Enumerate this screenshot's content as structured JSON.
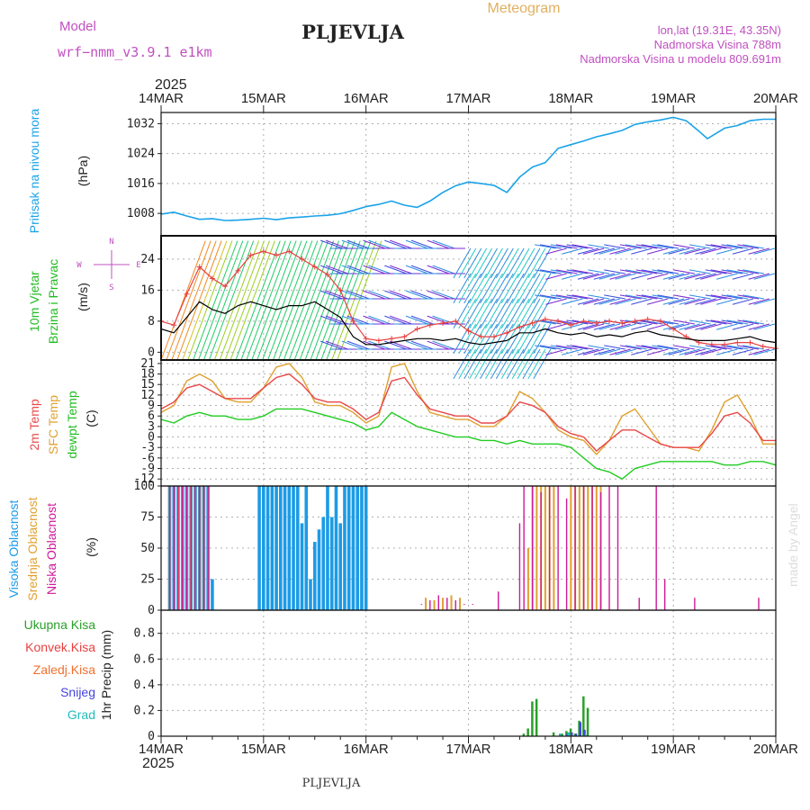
{
  "header": {
    "model_label": "Model",
    "model_value": "wrf−nmm_v3.9.1  e1km",
    "station": "PLJEVLJA",
    "product": "Meteogram",
    "coords": "lon,lat (19.31E, 43.35N)",
    "elevation": "Nadmorska Visina 788m",
    "model_elevation": "Nadmorska Visina u modelu 809.691m",
    "footer_station": "PLJEVLJA",
    "credit": "made by Angel"
  },
  "time_axis": {
    "year": "2025",
    "labels": [
      "14MAR",
      "15MAR",
      "16MAR",
      "17MAR",
      "18MAR",
      "19MAR",
      "20MAR"
    ],
    "start_hour": 0,
    "end_hour": 144
  },
  "colors": {
    "pressure": "#1aa3e8",
    "wind_speed": "#000000",
    "gust": "#e84040",
    "t2m": "#e84848",
    "sfc": "#e0a030",
    "dew": "#22cc22",
    "high_cloud": "#1c9be6",
    "mid_cloud": "#e0a030",
    "low_cloud": "#cc1a9a",
    "total_precip": "#2aa02a",
    "conv_precip": "#e84040",
    "snow_precip": "#4444dd",
    "grad_precip": "#22bbbb"
  },
  "panels": {
    "pressure": {
      "label": "Pritisak na nivou mora",
      "unit": "(hPa)"
    },
    "wind": {
      "label1": "10m Vjetar",
      "label2": "Brzina i Pravac",
      "unit": "(m/s)",
      "compass_n": "N",
      "compass_s": "S",
      "compass_w": "W",
      "compass_e": "E"
    },
    "temp": {
      "label1": "2m Temp",
      "label2": "SFC Temp",
      "label3": "dewpt Temp",
      "unit": "(C)"
    },
    "cloud": {
      "label1": "Visoka Oblacnost",
      "label2": "Srednja Oblacnost",
      "label3": "Niska Oblacnost",
      "unit": "(%)"
    },
    "precip": {
      "label": "1hr Precip (mm)",
      "legend": [
        "Ukupna Kisa",
        "Konvek.Kisa",
        "Zaledj.Kisa",
        "Snijeg",
        "Grad"
      ]
    }
  },
  "chart_data": [
    {
      "type": "line",
      "id": "pressure",
      "ylim": [
        1002,
        1035
      ],
      "yticks": [
        "1008",
        "1016",
        "1024",
        "1032"
      ],
      "series": [
        {
          "x": [
            0,
            3,
            6,
            9,
            12,
            15,
            18,
            21,
            24,
            27,
            30,
            33,
            36,
            39,
            42,
            45,
            48,
            51,
            54,
            57,
            60,
            63,
            66,
            69,
            72,
            75,
            78,
            81,
            84,
            87,
            90,
            93,
            96,
            99,
            102,
            105,
            108,
            111,
            114,
            117,
            120,
            123,
            126,
            128,
            132,
            135,
            138,
            141,
            144
          ],
          "values": [
            1007.8,
            1008.3,
            1007.3,
            1006.4,
            1006.6,
            1006.1,
            1006.2,
            1006.4,
            1006.7,
            1006.3,
            1006.8,
            1007,
            1007.3,
            1007.5,
            1007.9,
            1008.8,
            1009.8,
            1010.4,
            1011.3,
            1010.2,
            1009.6,
            1011.3,
            1013.6,
            1015.4,
            1016.4,
            1016,
            1015.5,
            1013.6,
            1017.7,
            1020.4,
            1021.6,
            1025.4,
            1026.4,
            1027.4,
            1028.5,
            1029.3,
            1030.2,
            1031.8,
            1032.5,
            1033,
            1033.7,
            1032.8,
            1030,
            1028,
            1030.8,
            1031.5,
            1032.8,
            1033.2,
            1033.2
          ]
        }
      ]
    },
    {
      "type": "line",
      "id": "wind",
      "ylim": [
        -2,
        30
      ],
      "yticks": [
        "0",
        "8",
        "16",
        "24"
      ],
      "series": [
        {
          "name": "speed",
          "x": [
            0,
            3,
            6,
            9,
            12,
            15,
            18,
            21,
            24,
            27,
            30,
            33,
            36,
            39,
            42,
            45,
            48,
            51,
            54,
            57,
            60,
            63,
            66,
            69,
            72,
            75,
            78,
            81,
            84,
            87,
            90,
            93,
            96,
            99,
            102,
            105,
            108,
            111,
            114,
            117,
            120,
            123,
            126,
            129,
            132,
            135,
            138,
            141,
            144
          ],
          "values": [
            6,
            5,
            9,
            13,
            11,
            10,
            12,
            13,
            12,
            11,
            12,
            12,
            13,
            11,
            9,
            4,
            2,
            2,
            2.5,
            3,
            3.5,
            3.5,
            3,
            3.5,
            2.5,
            2,
            2.5,
            3,
            5,
            5,
            6,
            5,
            4.5,
            5,
            4,
            4.5,
            4,
            5,
            5.5,
            4.5,
            4,
            3.5,
            3,
            3,
            3,
            3.5,
            4,
            3,
            2.5
          ]
        },
        {
          "name": "gust",
          "x": [
            0,
            3,
            6,
            9,
            12,
            15,
            18,
            21,
            24,
            27,
            30,
            33,
            36,
            39,
            42,
            45,
            48,
            51,
            54,
            57,
            60,
            63,
            66,
            69,
            72,
            75,
            78,
            81,
            84,
            87,
            90,
            93,
            96,
            99,
            102,
            105,
            108,
            111,
            114,
            117,
            120,
            123,
            126,
            129,
            132,
            135,
            138,
            141,
            144
          ],
          "values": [
            8,
            7,
            15,
            22,
            19,
            17,
            21,
            25,
            26,
            25,
            26,
            24,
            22,
            20,
            16,
            8,
            3.5,
            3,
            3.5,
            4,
            6,
            7,
            7.5,
            8,
            5.5,
            4,
            4,
            5,
            6.5,
            7.5,
            8.5,
            8,
            7,
            8,
            7.5,
            8,
            7.5,
            8,
            8.5,
            8,
            6,
            4,
            2.5,
            2,
            2,
            2.5,
            2.5,
            1.5,
            1
          ]
        }
      ]
    },
    {
      "type": "line",
      "id": "temperature",
      "ylim": [
        -14,
        22
      ],
      "yticks": [
        "21",
        "18",
        "15",
        "12",
        "9",
        "6",
        "3",
        "0",
        "-3",
        "-6",
        "-9",
        "-12"
      ],
      "series": [
        {
          "name": "2m",
          "x": [
            0,
            3,
            6,
            9,
            12,
            15,
            18,
            21,
            24,
            27,
            30,
            33,
            36,
            39,
            42,
            45,
            48,
            51,
            54,
            57,
            60,
            63,
            66,
            69,
            72,
            75,
            78,
            81,
            84,
            87,
            90,
            93,
            96,
            99,
            102,
            105,
            108,
            111,
            114,
            117,
            120,
            123,
            126,
            129,
            132,
            135,
            138,
            141,
            144
          ],
          "values": [
            8,
            10,
            14,
            15,
            13,
            11,
            11,
            11,
            14,
            17,
            18,
            15,
            11,
            10,
            10,
            8,
            5,
            7,
            16,
            17,
            12,
            8,
            7,
            6,
            6,
            4,
            4,
            6,
            10,
            9,
            7,
            3,
            1,
            0,
            -4,
            -1,
            2,
            2,
            0,
            -2,
            -3,
            -3,
            -3,
            1,
            6,
            7,
            4,
            -1,
            -1
          ]
        },
        {
          "name": "sfc",
          "x": [
            0,
            3,
            6,
            9,
            12,
            15,
            18,
            21,
            24,
            27,
            30,
            33,
            36,
            39,
            42,
            45,
            48,
            51,
            54,
            57,
            60,
            63,
            66,
            69,
            72,
            75,
            78,
            81,
            84,
            87,
            90,
            93,
            96,
            99,
            102,
            105,
            108,
            111,
            114,
            117,
            120,
            123,
            126,
            129,
            132,
            135,
            138,
            141,
            144
          ],
          "values": [
            7,
            9,
            16,
            18,
            16,
            11,
            10,
            10,
            14,
            20,
            21,
            17,
            10,
            9,
            9,
            7,
            4,
            6,
            20,
            21,
            13,
            7,
            6,
            5,
            5,
            3,
            3,
            6,
            13,
            11,
            7,
            2,
            0,
            -1,
            -5,
            -1,
            6,
            8,
            3,
            -2,
            -3,
            -3,
            -4,
            2,
            10,
            12,
            6,
            -2,
            -2
          ]
        },
        {
          "name": "dewpt",
          "x": [
            0,
            3,
            6,
            9,
            12,
            15,
            18,
            21,
            24,
            27,
            30,
            33,
            36,
            39,
            42,
            45,
            48,
            51,
            54,
            57,
            60,
            63,
            66,
            69,
            72,
            75,
            78,
            81,
            84,
            87,
            90,
            93,
            96,
            99,
            102,
            105,
            108,
            111,
            114,
            117,
            120,
            123,
            126,
            129,
            132,
            135,
            138,
            141,
            144
          ],
          "values": [
            5,
            4,
            6,
            7,
            6,
            6,
            5,
            5,
            6,
            8,
            8,
            8,
            7,
            6,
            5,
            4,
            2,
            3,
            7,
            5,
            3,
            2,
            1,
            0,
            0,
            -1,
            -1,
            -2,
            -1,
            -2,
            -2,
            -2,
            -3,
            -6,
            -9,
            -10,
            -12,
            -9,
            -8,
            -7,
            -7,
            -7,
            -7,
            -7,
            -8,
            -8,
            -7,
            -7,
            -8
          ]
        }
      ]
    },
    {
      "type": "bar",
      "id": "cloud",
      "ylim": [
        0,
        100
      ],
      "yticks": [
        "0",
        "25",
        "50",
        "75",
        "100"
      ],
      "series": [
        {
          "name": "high",
          "x": [
            2,
            3,
            4,
            5,
            6,
            7,
            8,
            9,
            10,
            11,
            12,
            23,
            24,
            25,
            26,
            27,
            28,
            29,
            30,
            31,
            32,
            33,
            34,
            35,
            36,
            37,
            38,
            39,
            40,
            41,
            42,
            43,
            44,
            45,
            46,
            47,
            48
          ],
          "values": [
            100,
            100,
            100,
            100,
            100,
            100,
            100,
            100,
            100,
            100,
            25,
            100,
            100,
            100,
            100,
            100,
            100,
            100,
            100,
            100,
            100,
            70,
            100,
            25,
            55,
            65,
            75,
            100,
            75,
            100,
            70,
            100,
            100,
            100,
            100,
            100,
            100
          ]
        },
        {
          "name": "mid",
          "x": [
            2,
            3,
            4,
            5,
            6,
            7,
            8,
            9,
            10,
            11,
            62,
            64,
            66,
            68,
            70,
            86,
            87,
            88,
            89,
            90,
            91,
            92,
            96,
            97,
            98,
            99,
            100,
            101,
            102,
            103
          ],
          "values": [
            100,
            100,
            100,
            100,
            100,
            100,
            100,
            100,
            100,
            100,
            10,
            8,
            10,
            12,
            10,
            50,
            100,
            100,
            100,
            100,
            100,
            100,
            100,
            100,
            100,
            100,
            100,
            100,
            100,
            100
          ]
        },
        {
          "name": "low",
          "x": [
            2,
            3,
            4,
            5,
            6,
            7,
            8,
            9,
            10,
            11,
            61,
            63,
            65,
            67,
            69,
            71,
            73,
            79,
            84,
            85,
            87,
            89,
            91,
            93,
            95,
            97,
            99,
            101,
            103,
            105,
            107,
            112,
            116,
            118,
            125,
            140
          ],
          "values": [
            100,
            100,
            100,
            100,
            100,
            100,
            100,
            100,
            100,
            100,
            5,
            8,
            12,
            10,
            8,
            5,
            5,
            15,
            70,
            100,
            100,
            95,
            100,
            100,
            90,
            100,
            100,
            100,
            95,
            100,
            100,
            10,
            100,
            25,
            10,
            10
          ]
        }
      ]
    },
    {
      "type": "bar",
      "id": "precip",
      "ylim": [
        0,
        0.98
      ],
      "yticks": [
        "0",
        "0.2",
        "0.4",
        "0.6",
        "0.8"
      ],
      "series": [
        {
          "name": "total",
          "x": [
            85,
            86,
            87,
            88,
            92,
            94,
            95,
            96,
            97,
            98,
            99,
            100
          ],
          "values": [
            0.02,
            0.06,
            0.27,
            0.29,
            0.03,
            0.02,
            0.04,
            0.06,
            0.02,
            0.12,
            0.31,
            0.22
          ]
        },
        {
          "name": "snow",
          "x": [
            95,
            96,
            97,
            98,
            99
          ],
          "values": [
            0.02,
            0.03,
            0.02,
            0.11,
            0.05
          ]
        },
        {
          "name": "grad",
          "x": [
            93,
            95,
            99
          ],
          "values": [
            0.02,
            0.03,
            0.01
          ]
        }
      ]
    }
  ]
}
